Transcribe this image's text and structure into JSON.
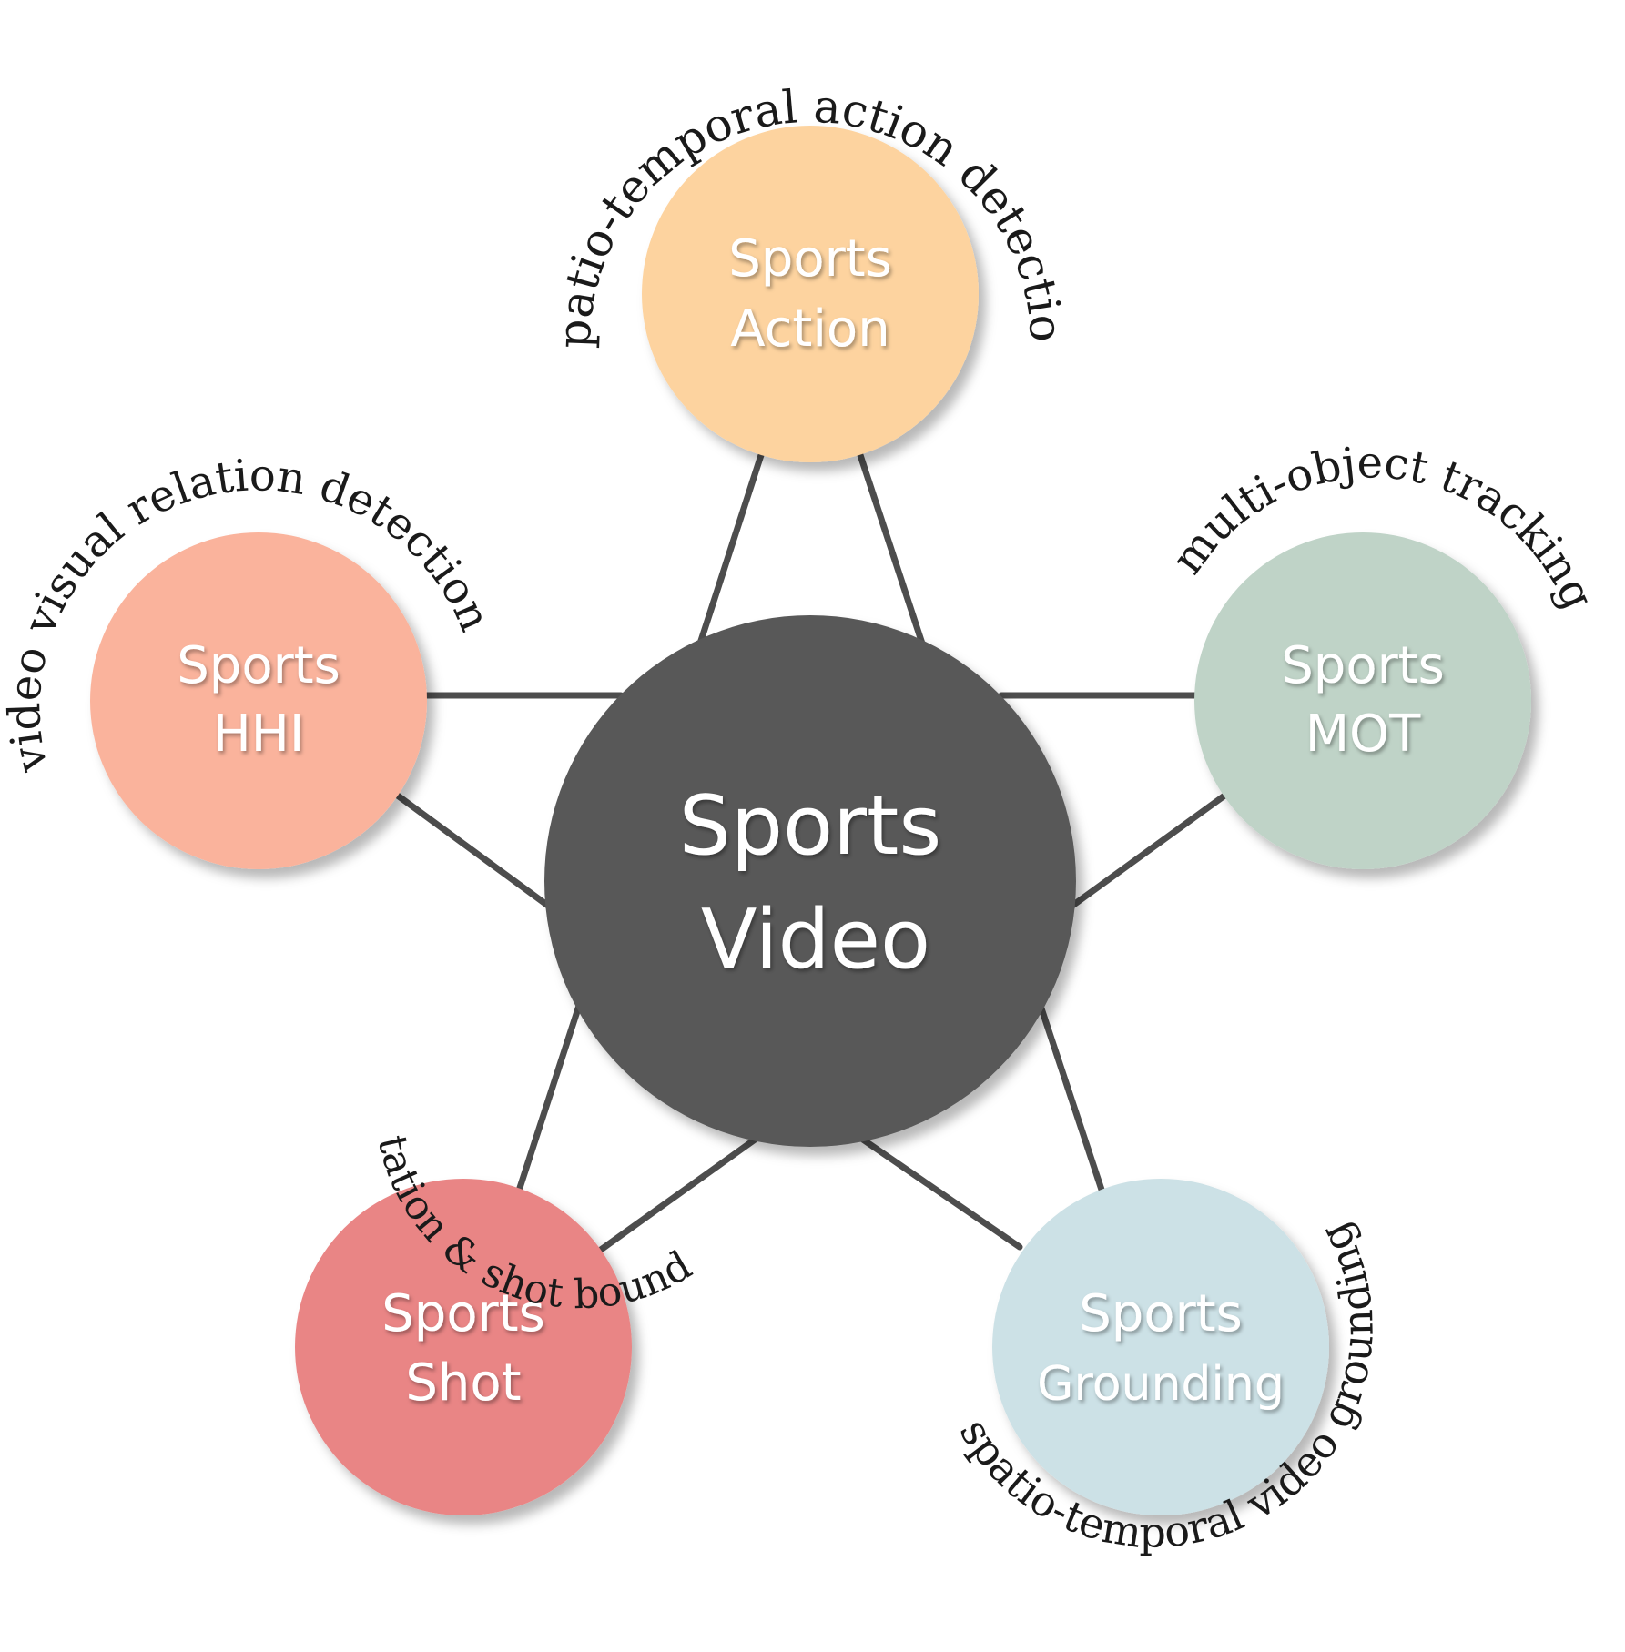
{
  "center": {
    "line1": "Sports",
    "line2": "Video",
    "color": "#595959"
  },
  "edge_color": "#4d4d4d",
  "nodes": [
    {
      "line1": "Sports",
      "line2": "Action",
      "color": "#fdd39f",
      "task": "spatio-temporal action detection"
    },
    {
      "line1": "Sports",
      "line2": "MOT",
      "color": "#bfd3c7",
      "task": "multi-object tracking"
    },
    {
      "line1": "Sports",
      "line2": "Grounding",
      "color": "#cce1e6",
      "task": "spatio-temporal video grounding"
    },
    {
      "line1": "Sports",
      "line2": "Shot",
      "color": "#e98585",
      "task": "shot segmentation & shot boundary detection"
    },
    {
      "line1": "Sports",
      "line2": "HHI",
      "color": "#fab39c",
      "task": "video visual relation detection"
    }
  ]
}
